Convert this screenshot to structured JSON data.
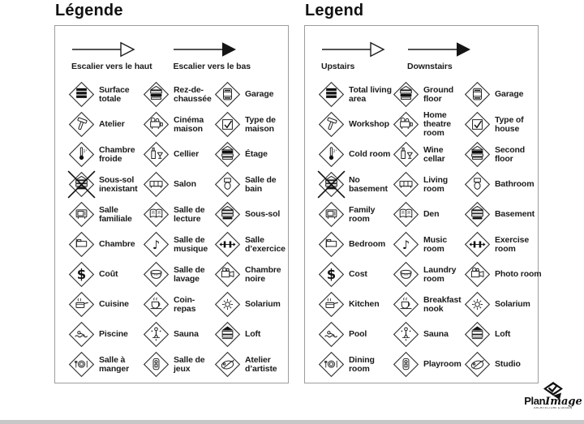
{
  "colors": {
    "ink": "#1c1c1c",
    "panel_border": "#9c9c9c",
    "arrow_filled": "#151515",
    "bottom_bar": "#c7c7c7"
  },
  "panels": [
    {
      "title": "Légende",
      "arrows": [
        {
          "label": "Escalier vers le haut",
          "head": "open",
          "icon": "up-arrow-icon"
        },
        {
          "label": "Escalier vers le bas",
          "head": "filled",
          "icon": "down-arrow-icon"
        }
      ],
      "items": [
        {
          "label": "Surface totale",
          "icon": "floors-total-icon"
        },
        {
          "label": "Rez-de-chaussée",
          "icon": "floors-ground-icon"
        },
        {
          "label": "Garage",
          "icon": "garage-icon"
        },
        {
          "label": "Atelier",
          "icon": "hammer-icon"
        },
        {
          "label": "Cinéma maison",
          "icon": "projector-icon"
        },
        {
          "label": "Type de maison",
          "icon": "house-type-check-icon"
        },
        {
          "label": "Chambre froide",
          "icon": "thermometer-icon"
        },
        {
          "label": "Cellier",
          "icon": "wine-icon"
        },
        {
          "label": "Étage",
          "icon": "floors-upper-icon"
        },
        {
          "label": "Sous-sol inexistant",
          "icon": "no-basement-icon"
        },
        {
          "label": "Salon",
          "icon": "sofa-icon"
        },
        {
          "label": "Salle de bain",
          "icon": "toilet-icon"
        },
        {
          "label": "Salle familiale",
          "icon": "tv-icon"
        },
        {
          "label": "Salle de lecture",
          "icon": "book-icon"
        },
        {
          "label": "Sous-sol",
          "icon": "floors-basement-icon"
        },
        {
          "label": "Chambre",
          "icon": "bed-icon"
        },
        {
          "label": "Salle de musique",
          "icon": "music-note-icon"
        },
        {
          "label": "Salle d’exercice",
          "icon": "dumbbell-icon"
        },
        {
          "label": "Coût",
          "icon": "dollar-icon"
        },
        {
          "label": "Salle de lavage",
          "icon": "laundry-icon"
        },
        {
          "label": "Chambre noire",
          "icon": "camera-icon"
        },
        {
          "label": "Cuisine",
          "icon": "cooking-pot-icon"
        },
        {
          "label": "Coin-repas",
          "icon": "coffee-cup-icon"
        },
        {
          "label": "Solarium",
          "icon": "sun-icon"
        },
        {
          "label": "Piscine",
          "icon": "swimmer-icon"
        },
        {
          "label": "Sauna",
          "icon": "sauna-icon"
        },
        {
          "label": "Loft",
          "icon": "loft-icon"
        },
        {
          "label": "Salle à manger",
          "icon": "dining-icon"
        },
        {
          "label": "Salle de jeux",
          "icon": "playroom-icon"
        },
        {
          "label": "Atelier d’artiste",
          "icon": "palette-icon"
        }
      ]
    },
    {
      "title": "Legend",
      "arrows": [
        {
          "label": "Upstairs",
          "head": "open",
          "icon": "up-arrow-icon"
        },
        {
          "label": "Downstairs",
          "head": "filled",
          "icon": "down-arrow-icon"
        }
      ],
      "items": [
        {
          "label": "Total living area",
          "icon": "floors-total-icon"
        },
        {
          "label": "Ground floor",
          "icon": "floors-ground-icon"
        },
        {
          "label": "Garage",
          "icon": "garage-icon"
        },
        {
          "label": "Workshop",
          "icon": "hammer-icon"
        },
        {
          "label": "Home theatre room",
          "icon": "projector-icon"
        },
        {
          "label": "Type of house",
          "icon": "house-type-check-icon"
        },
        {
          "label": "Cold room",
          "icon": "thermometer-icon"
        },
        {
          "label": "Wine cellar",
          "icon": "wine-icon"
        },
        {
          "label": "Second floor",
          "icon": "floors-upper-icon"
        },
        {
          "label": "No basement",
          "icon": "no-basement-icon"
        },
        {
          "label": "Living room",
          "icon": "sofa-icon"
        },
        {
          "label": "Bathroom",
          "icon": "toilet-icon"
        },
        {
          "label": "Family room",
          "icon": "tv-icon"
        },
        {
          "label": "Den",
          "icon": "book-icon"
        },
        {
          "label": "Basement",
          "icon": "floors-basement-icon"
        },
        {
          "label": "Bedroom",
          "icon": "bed-icon"
        },
        {
          "label": "Music room",
          "icon": "music-note-icon"
        },
        {
          "label": "Exercise room",
          "icon": "dumbbell-icon"
        },
        {
          "label": "Cost",
          "icon": "dollar-icon"
        },
        {
          "label": "Laundry room",
          "icon": "laundry-icon"
        },
        {
          "label": "Photo room",
          "icon": "camera-icon"
        },
        {
          "label": "Kitchen",
          "icon": "cooking-pot-icon"
        },
        {
          "label": "Breakfast nook",
          "icon": "coffee-cup-icon"
        },
        {
          "label": "Solarium",
          "icon": "sun-icon"
        },
        {
          "label": "Pool",
          "icon": "swimmer-icon"
        },
        {
          "label": "Sauna",
          "icon": "sauna-icon"
        },
        {
          "label": "Loft",
          "icon": "loft-icon"
        },
        {
          "label": "Dining room",
          "icon": "dining-icon"
        },
        {
          "label": "Playroom",
          "icon": "playroom-icon"
        },
        {
          "label": "Studio",
          "icon": "palette-icon"
        }
      ]
    }
  ],
  "logo": {
    "brand_bold": "Plan",
    "brand_italic": "Image",
    "tagline": "ARCHITECTURE & DESIGN"
  }
}
